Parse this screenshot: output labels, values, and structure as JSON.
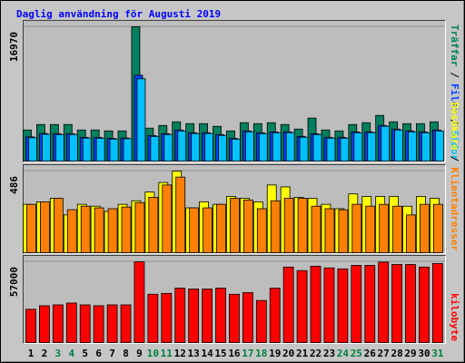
{
  "title": "Daglig användning för Augusti 2019",
  "separator": "/",
  "chart_data": [
    {
      "type": "bar",
      "ylim": [
        0,
        16970
      ],
      "yticks": [
        16970
      ],
      "series": [
        {
          "name": "Träffar",
          "color": "#00805c",
          "values": [
            3930,
            4620,
            4620,
            4620,
            3930,
            3930,
            3810,
            3810,
            16970,
            4160,
            4500,
            4960,
            4730,
            4730,
            4390,
            3810,
            4850,
            4730,
            4850,
            4620,
            4040,
            5430,
            3930,
            3810,
            4620,
            4850,
            5770,
            4960,
            4730,
            4730,
            4960
          ]
        },
        {
          "name": "Filer",
          "color": "#0040ff",
          "values": [
            3060,
            3480,
            3460,
            3460,
            3000,
            3000,
            2880,
            2920,
            10850,
            3230,
            3460,
            3920,
            3580,
            3580,
            3350,
            2880,
            3810,
            3580,
            3690,
            3690,
            3120,
            3460,
            3000,
            3000,
            3690,
            3690,
            4500,
            4040,
            3810,
            3690,
            3920
          ]
        },
        {
          "name": "Sidor",
          "color": "#00c0ff",
          "values": [
            2950,
            3380,
            3350,
            3360,
            2900,
            2890,
            2780,
            2820,
            10400,
            3120,
            3350,
            3810,
            3470,
            3480,
            3240,
            2780,
            3700,
            3470,
            3580,
            3590,
            3020,
            3350,
            2900,
            2890,
            3580,
            3590,
            4390,
            3930,
            3700,
            3580,
            3810
          ]
        }
      ]
    },
    {
      "type": "bar",
      "ylim": [
        0,
        486
      ],
      "yticks": [
        486
      ],
      "series": [
        {
          "name": "Besökare",
          "color": "#ffff00",
          "values": [
            288,
            303,
            324,
            225,
            288,
            277,
            246,
            288,
            309,
            361,
            418,
            486,
            267,
            303,
            288,
            335,
            324,
            303,
            403,
            392,
            330,
            324,
            288,
            262,
            350,
            335,
            335,
            335,
            277,
            335,
            324
          ]
        },
        {
          "name": "Klientadresser",
          "color": "#ff8000",
          "values": [
            288,
            303,
            324,
            256,
            277,
            267,
            262,
            272,
            298,
            330,
            403,
            450,
            267,
            267,
            288,
            324,
            314,
            262,
            309,
            324,
            324,
            277,
            262,
            256,
            288,
            277,
            288,
            277,
            225,
            288,
            288
          ]
        }
      ]
    },
    {
      "type": "bar",
      "ylim": [
        0,
        57000
      ],
      "yticks": [
        57000
      ],
      "categories": [
        "1",
        "2",
        "3",
        "4",
        "5",
        "6",
        "7",
        "8",
        "9",
        "10",
        "11",
        "12",
        "13",
        "14",
        "15",
        "16",
        "17",
        "18",
        "19",
        "20",
        "21",
        "22",
        "23",
        "24",
        "25",
        "26",
        "27",
        "28",
        "29",
        "30",
        "31"
      ],
      "category_colors": [
        "#000000",
        "#000000",
        "#008040",
        "#008040",
        "#000000",
        "#000000",
        "#000000",
        "#000000",
        "#000000",
        "#008040",
        "#008040",
        "#000000",
        "#000000",
        "#000000",
        "#000000",
        "#000000",
        "#008040",
        "#008040",
        "#000000",
        "#000000",
        "#000000",
        "#000000",
        "#000000",
        "#008040",
        "#008040",
        "#000000",
        "#000000",
        "#000000",
        "#000000",
        "#000000",
        "#008040"
      ],
      "series": [
        {
          "name": "kilobyte",
          "color": "#ff0000",
          "values": [
            23500,
            26000,
            26600,
            27900,
            26600,
            26000,
            26600,
            26600,
            57000,
            34100,
            34700,
            38400,
            37800,
            37800,
            38400,
            34100,
            35300,
            29700,
            38400,
            53300,
            50800,
            53900,
            52700,
            52000,
            54500,
            54500,
            56800,
            55100,
            55100,
            53300,
            55800
          ]
        }
      ]
    }
  ]
}
